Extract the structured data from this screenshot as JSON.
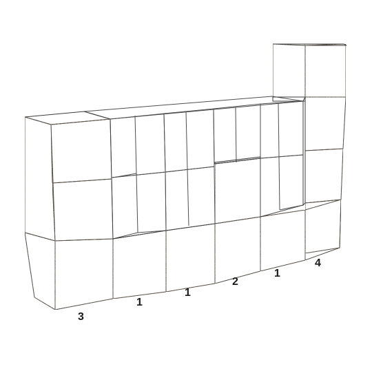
{
  "diagram": {
    "column_labels": [
      "3",
      "1",
      "1",
      "2",
      "1",
      "4"
    ],
    "stone_color": "#b09a7c",
    "water_color": "#3a9fc4",
    "edge_color": "#3a3a3a"
  }
}
